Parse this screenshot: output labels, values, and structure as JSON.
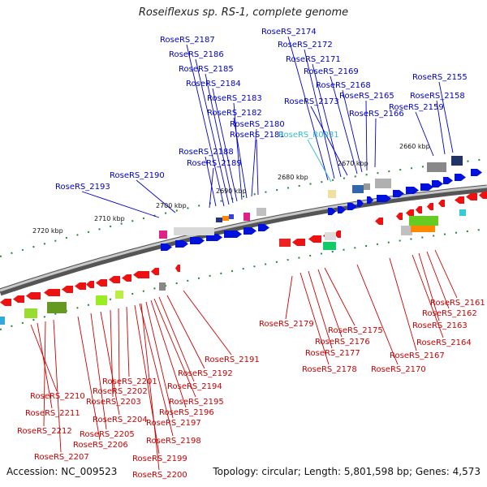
{
  "header": {
    "title": "Roseiflexus sp. RS-1, complete genome"
  },
  "footer": {
    "accession": "Accession: NC_009523",
    "summary": "Topology: circular; Length: 5,801,598 bp; Genes: 4,573"
  },
  "colors": {
    "plus_label": "#0000cc",
    "rna_label": "#33bbcc",
    "minus_label": "#cc0000",
    "plus_gene": "#0011dd",
    "minus_gene": "#ee1111",
    "tick": "#228833",
    "backbone": "#777777"
  },
  "scale_labels": [
    "2720 kbp",
    "2710 kbp",
    "2700 kbp",
    "2690 kbp",
    "2680 kbp",
    "2670 kbp",
    "2660 kbp"
  ],
  "plus_labels": [
    "RoseRS_2193",
    "RoseRS_2190",
    "RoseRS_2189",
    "RoseRS_2188",
    "RoseRS_2181",
    "RoseRS_2180",
    "RoseRS_2182",
    "RoseRS_2183",
    "RoseRS_2184",
    "RoseRS_2185",
    "RoseRS_2186",
    "RoseRS_2187",
    "RoseRS_2174",
    "RoseRS_2172",
    "RoseRS_2171",
    "RoseRS_2169",
    "RoseRS_2168",
    "RoseRS_2173",
    "RoseRS_2165",
    "RoseRS_2166",
    "RoseRS_2155",
    "RoseRS_2158",
    "RoseRS_2159"
  ],
  "rna_labels": [
    "RoseRS_R0031"
  ],
  "minus_labels": [
    "RoseRS_2210",
    "RoseRS_2211",
    "RoseRS_2212",
    "RoseRS_2207",
    "RoseRS_2206",
    "RoseRS_2205",
    "RoseRS_2204",
    "RoseRS_2203",
    "RoseRS_2202",
    "RoseRS_2201",
    "RoseRS_2200",
    "RoseRS_2199",
    "RoseRS_2198",
    "RoseRS_2197",
    "RoseRS_2196",
    "RoseRS_2195",
    "RoseRS_2194",
    "RoseRS_2192",
    "RoseRS_2191",
    "RoseRS_2179",
    "RoseRS_2178",
    "RoseRS_2177",
    "RoseRS_2176",
    "RoseRS_2175",
    "RoseRS_2170",
    "RoseRS_2167",
    "RoseRS_2164",
    "RoseRS_2163",
    "RoseRS_2162",
    "RoseRS_2161"
  ]
}
